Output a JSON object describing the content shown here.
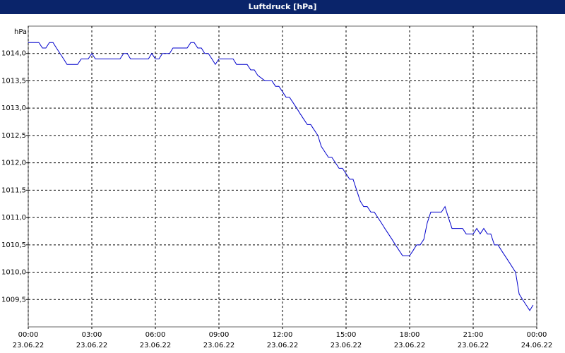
{
  "chart_data": {
    "type": "line",
    "title": "Luftdruck [hPa]",
    "y_label": "hPa",
    "x": [
      0,
      0.5,
      0.67,
      0.83,
      1,
      1.17,
      1.33,
      1.5,
      1.67,
      1.83,
      2.33,
      2.5,
      2.83,
      3,
      3.17,
      4.33,
      4.5,
      4.67,
      4.83,
      5.67,
      5.83,
      6,
      6.17,
      6.33,
      6.67,
      6.83,
      7.5,
      7.67,
      7.83,
      8,
      8.17,
      8.33,
      8.5,
      8.67,
      8.83,
      9,
      9.67,
      9.83,
      10.33,
      10.5,
      10.67,
      10.83,
      11.17,
      11.5,
      11.67,
      11.83,
      12,
      12.17,
      12.33,
      12.5,
      12.67,
      12.83,
      13,
      13.17,
      13.33,
      13.5,
      13.67,
      13.83,
      14,
      14.17,
      14.33,
      14.5,
      14.67,
      14.83,
      15,
      15.17,
      15.33,
      15.5,
      15.67,
      15.83,
      16,
      16.17,
      16.33,
      16.5,
      16.67,
      16.83,
      17,
      17.17,
      17.33,
      17.5,
      17.67,
      18,
      18.17,
      18.33,
      18.5,
      18.67,
      18.83,
      19,
      19.17,
      19.5,
      19.67,
      19.83,
      20,
      20.5,
      20.67,
      21,
      21.17,
      21.33,
      21.5,
      21.67,
      21.83,
      22,
      22.17,
      22.33,
      22.67,
      23,
      23.17,
      23.33,
      23.5,
      23.67,
      23.83
    ],
    "series": [
      {
        "name": "Luftdruck",
        "color": "#0000cc",
        "values": [
          1014.2,
          1014.2,
          1014.1,
          1014.1,
          1014.2,
          1014.2,
          1014.1,
          1014.0,
          1013.9,
          1013.8,
          1013.8,
          1013.9,
          1013.9,
          1014.0,
          1013.9,
          1013.9,
          1014.0,
          1014.0,
          1013.9,
          1013.9,
          1014.0,
          1013.9,
          1013.9,
          1014.0,
          1014.0,
          1014.1,
          1014.1,
          1014.2,
          1014.2,
          1014.1,
          1014.1,
          1014.0,
          1014.0,
          1013.9,
          1013.8,
          1013.9,
          1013.9,
          1013.8,
          1013.8,
          1013.7,
          1013.7,
          1013.6,
          1013.5,
          1013.5,
          1013.4,
          1013.4,
          1013.3,
          1013.2,
          1013.2,
          1013.1,
          1013.0,
          1012.9,
          1012.8,
          1012.7,
          1012.7,
          1012.6,
          1012.5,
          1012.3,
          1012.2,
          1012.1,
          1012.1,
          1012.0,
          1011.9,
          1011.9,
          1011.8,
          1011.7,
          1011.7,
          1011.5,
          1011.3,
          1011.2,
          1011.2,
          1011.1,
          1011.1,
          1011.0,
          1010.9,
          1010.8,
          1010.7,
          1010.6,
          1010.5,
          1010.4,
          1010.3,
          1010.3,
          1010.4,
          1010.5,
          1010.5,
          1010.6,
          1010.9,
          1011.1,
          1011.1,
          1011.1,
          1011.2,
          1011.0,
          1010.8,
          1010.8,
          1010.7,
          1010.7,
          1010.8,
          1010.7,
          1010.8,
          1010.7,
          1010.7,
          1010.5,
          1010.5,
          1010.4,
          1010.2,
          1010.0,
          1009.6,
          1009.5,
          1009.4,
          1009.3,
          1009.4
        ]
      }
    ],
    "xlim": [
      0,
      24
    ],
    "ylim": [
      1009,
      1014.5
    ],
    "xticks": [
      {
        "value": 0,
        "label": "00:00",
        "date": "23.06.22"
      },
      {
        "value": 3,
        "label": "03:00",
        "date": "23.06.22"
      },
      {
        "value": 6,
        "label": "06:00",
        "date": "23.06.22"
      },
      {
        "value": 9,
        "label": "09:00",
        "date": "23.06.22"
      },
      {
        "value": 12,
        "label": "12:00",
        "date": "23.06.22"
      },
      {
        "value": 15,
        "label": "15:00",
        "date": "23.06.22"
      },
      {
        "value": 18,
        "label": "18:00",
        "date": "23.06.22"
      },
      {
        "value": 21,
        "label": "21:00",
        "date": "23.06.22"
      },
      {
        "value": 24,
        "label": "00:00",
        "date": "24.06.22"
      }
    ],
    "yticks": [
      {
        "value": 1009.5,
        "label": "1009,5"
      },
      {
        "value": 1010,
        "label": "1010,0"
      },
      {
        "value": 1010.5,
        "label": "1010,5"
      },
      {
        "value": 1011,
        "label": "1011,0"
      },
      {
        "value": 1011.5,
        "label": "1011,5"
      },
      {
        "value": 1012,
        "label": "1012,0"
      },
      {
        "value": 1012.5,
        "label": "1012,5"
      },
      {
        "value": 1013,
        "label": "1013,0"
      },
      {
        "value": 1013.5,
        "label": "1013,5"
      },
      {
        "value": 1014,
        "label": "1014,0"
      }
    ],
    "grid": true
  }
}
